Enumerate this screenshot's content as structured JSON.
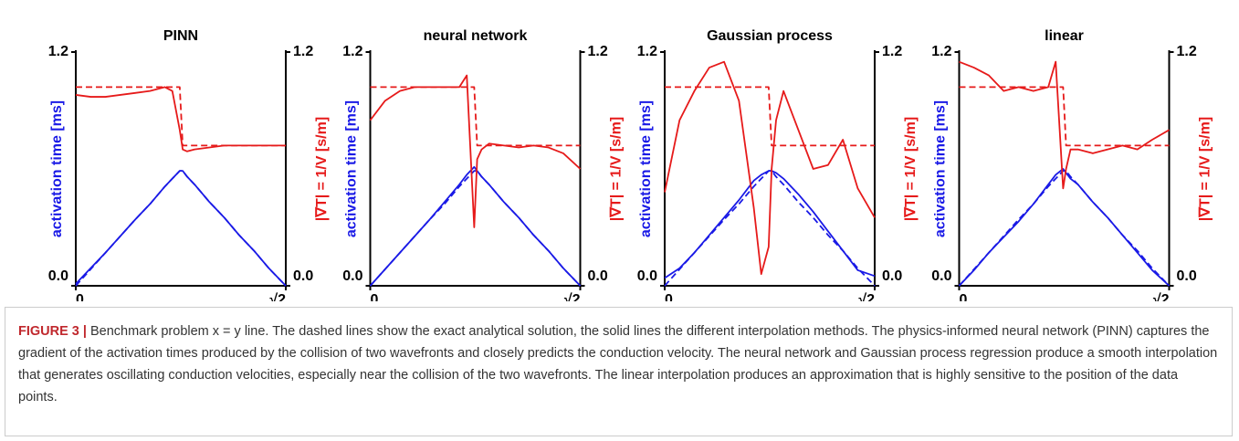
{
  "chart_data": [
    {
      "type": "line",
      "title": "PINN",
      "ylabel": "activation time [ms]",
      "y2label": "|∇T| = 1/V [s/m]",
      "x": [
        0,
        0.1,
        0.2,
        0.3,
        0.4,
        0.5,
        0.6,
        0.65,
        0.7,
        0.72,
        0.75,
        0.8,
        0.9,
        1.0,
        1.1,
        1.2,
        1.3,
        1.414
      ],
      "xlim": [
        0,
        1.414
      ],
      "xticks": [
        0,
        {
          "value": 1.414,
          "label": "√2"
        }
      ],
      "ylim": [
        0,
        1.2
      ],
      "yticks": [
        {
          "value": 0,
          "label": "0.0"
        },
        1.2
      ],
      "y2lim": [
        0,
        1.2
      ],
      "y2ticks": [
        {
          "value": 0,
          "label": "0.0"
        },
        1.2
      ],
      "series": [
        {
          "color": "#1a1ae6",
          "dash": true,
          "values": [
            0,
            0.085,
            0.17,
            0.255,
            0.34,
            0.42,
            0.51,
            0.55,
            0.59,
            0.59,
            0.56,
            0.52,
            0.43,
            0.35,
            0.26,
            0.18,
            0.09,
            0
          ]
        },
        {
          "color": "#1a1ae6",
          "dash": false,
          "values": [
            0.01,
            0.09,
            0.17,
            0.255,
            0.34,
            0.42,
            0.51,
            0.55,
            0.59,
            0.59,
            0.56,
            0.52,
            0.43,
            0.35,
            0.26,
            0.18,
            0.09,
            0
          ]
        },
        {
          "color": "#e61a1a",
          "dash": true,
          "axis": "y2",
          "values": [
            1.02,
            1.02,
            1.02,
            1.02,
            1.02,
            1.02,
            1.02,
            1.02,
            1.02,
            0.72,
            0.72,
            0.72,
            0.72,
            0.72,
            0.72,
            0.72,
            0.72,
            0.72
          ]
        },
        {
          "color": "#e61a1a",
          "dash": false,
          "axis": "y2",
          "values": [
            0.98,
            0.97,
            0.97,
            0.98,
            0.99,
            1.0,
            1.02,
            1.0,
            0.8,
            0.7,
            0.69,
            0.7,
            0.71,
            0.72,
            0.72,
            0.72,
            0.72,
            0.72
          ]
        }
      ]
    },
    {
      "type": "line",
      "title": "neural network",
      "ylabel": "activation time [ms]",
      "y2label": "|∇T| = 1/V [s/m]",
      "x": [
        0,
        0.1,
        0.2,
        0.3,
        0.4,
        0.5,
        0.6,
        0.65,
        0.7,
        0.72,
        0.75,
        0.8,
        0.9,
        1.0,
        1.1,
        1.2,
        1.3,
        1.414
      ],
      "xlim": [
        0,
        1.414
      ],
      "xticks": [
        0,
        {
          "value": 1.414,
          "label": "√2"
        }
      ],
      "ylim": [
        0,
        1.2
      ],
      "yticks": [
        {
          "value": 0,
          "label": "0.0"
        },
        1.2
      ],
      "y2lim": [
        0,
        1.2
      ],
      "y2ticks": [
        {
          "value": 0,
          "label": "0.0"
        },
        1.2
      ],
      "series": [
        {
          "color": "#1a1ae6",
          "dash": true,
          "values": [
            0,
            0.085,
            0.17,
            0.255,
            0.34,
            0.42,
            0.51,
            0.55,
            0.59,
            0.59,
            0.56,
            0.52,
            0.43,
            0.35,
            0.26,
            0.18,
            0.09,
            0
          ]
        },
        {
          "color": "#1a1ae6",
          "dash": false,
          "values": [
            0,
            0.085,
            0.17,
            0.255,
            0.34,
            0.43,
            0.52,
            0.57,
            0.61,
            0.59,
            0.56,
            0.52,
            0.43,
            0.35,
            0.26,
            0.18,
            0.09,
            0
          ]
        },
        {
          "color": "#e61a1a",
          "dash": true,
          "axis": "y2",
          "values": [
            1.02,
            1.02,
            1.02,
            1.02,
            1.02,
            1.02,
            1.02,
            1.02,
            1.02,
            0.72,
            0.72,
            0.72,
            0.72,
            0.72,
            0.72,
            0.72,
            0.72,
            0.72
          ]
        },
        {
          "color": "#e61a1a",
          "dash": false,
          "axis": "y2",
          "values": [
            0.85,
            0.95,
            1.0,
            1.02,
            1.02,
            1.02,
            1.02,
            1.08,
            0.3,
            0.65,
            0.7,
            0.73,
            0.72,
            0.71,
            0.72,
            0.71,
            0.68,
            0.6
          ]
        }
      ]
    },
    {
      "type": "line",
      "title": "Gaussian process",
      "ylabel": "activation time [ms]",
      "y2label": "|∇T| = 1/V [s/m]",
      "x": [
        0,
        0.1,
        0.2,
        0.3,
        0.4,
        0.5,
        0.6,
        0.65,
        0.7,
        0.72,
        0.75,
        0.8,
        0.9,
        1.0,
        1.1,
        1.2,
        1.3,
        1.414
      ],
      "xlim": [
        0,
        1.414
      ],
      "xticks": [
        0,
        {
          "value": 1.414,
          "label": "√2"
        }
      ],
      "ylim": [
        0,
        1.2
      ],
      "yticks": [
        {
          "value": 0,
          "label": "0.0"
        },
        1.2
      ],
      "y2lim": [
        0,
        1.2
      ],
      "y2ticks": [
        {
          "value": 0,
          "label": "0.0"
        },
        1.2
      ],
      "series": [
        {
          "color": "#1a1ae6",
          "dash": true,
          "values": [
            0,
            0.085,
            0.17,
            0.255,
            0.34,
            0.42,
            0.51,
            0.55,
            0.59,
            0.59,
            0.56,
            0.52,
            0.43,
            0.35,
            0.26,
            0.18,
            0.09,
            0
          ]
        },
        {
          "color": "#1a1ae6",
          "dash": false,
          "values": [
            0.04,
            0.09,
            0.17,
            0.26,
            0.35,
            0.44,
            0.54,
            0.57,
            0.59,
            0.59,
            0.58,
            0.55,
            0.47,
            0.38,
            0.28,
            0.18,
            0.08,
            0.05
          ]
        },
        {
          "color": "#e61a1a",
          "dash": true,
          "axis": "y2",
          "values": [
            1.02,
            1.02,
            1.02,
            1.02,
            1.02,
            1.02,
            1.02,
            1.02,
            1.02,
            0.72,
            0.72,
            0.72,
            0.72,
            0.72,
            0.72,
            0.72,
            0.72,
            0.72
          ]
        },
        {
          "color": "#e61a1a",
          "dash": false,
          "axis": "y2",
          "values": [
            0.48,
            0.85,
            1.0,
            1.12,
            1.15,
            0.95,
            0.4,
            0.06,
            0.2,
            0.6,
            0.85,
            1.0,
            0.8,
            0.6,
            0.62,
            0.75,
            0.5,
            0.35
          ]
        }
      ]
    },
    {
      "type": "line",
      "title": "linear",
      "ylabel": "activation time [ms]",
      "y2label": "|∇T| = 1/V [s/m]",
      "x": [
        0,
        0.1,
        0.2,
        0.3,
        0.4,
        0.5,
        0.6,
        0.65,
        0.7,
        0.72,
        0.75,
        0.8,
        0.9,
        1.0,
        1.1,
        1.2,
        1.3,
        1.414
      ],
      "xlim": [
        0,
        1.414
      ],
      "xticks": [
        0,
        {
          "value": 1.414,
          "label": "√2"
        }
      ],
      "ylim": [
        0,
        1.2
      ],
      "yticks": [
        {
          "value": 0,
          "label": "0.0"
        },
        1.2
      ],
      "y2lim": [
        0,
        1.2
      ],
      "y2ticks": [
        {
          "value": 0,
          "label": "0.0"
        },
        1.2
      ],
      "series": [
        {
          "color": "#1a1ae6",
          "dash": true,
          "values": [
            0,
            0.085,
            0.17,
            0.255,
            0.34,
            0.42,
            0.51,
            0.55,
            0.59,
            0.59,
            0.56,
            0.52,
            0.43,
            0.35,
            0.26,
            0.18,
            0.09,
            0
          ]
        },
        {
          "color": "#1a1ae6",
          "dash": false,
          "values": [
            0,
            0.08,
            0.17,
            0.25,
            0.33,
            0.42,
            0.52,
            0.57,
            0.6,
            0.58,
            0.55,
            0.52,
            0.43,
            0.35,
            0.26,
            0.17,
            0.08,
            0
          ]
        },
        {
          "color": "#e61a1a",
          "dash": true,
          "axis": "y2",
          "values": [
            1.02,
            1.02,
            1.02,
            1.02,
            1.02,
            1.02,
            1.02,
            1.02,
            1.02,
            0.72,
            0.72,
            0.72,
            0.72,
            0.72,
            0.72,
            0.72,
            0.72,
            0.72
          ]
        },
        {
          "color": "#e61a1a",
          "dash": false,
          "axis": "y2",
          "values": [
            1.15,
            1.12,
            1.08,
            1.0,
            1.02,
            1.0,
            1.02,
            1.15,
            0.5,
            0.6,
            0.7,
            0.7,
            0.68,
            0.7,
            0.72,
            0.7,
            0.75,
            0.8
          ]
        }
      ]
    }
  ],
  "caption": {
    "label": "FIGURE 3 |",
    "text": "Benchmark problem x = y line. The dashed lines show the exact analytical solution, the solid lines the different interpolation methods. The physics-informed neural network (PINN) captures the gradient of the activation times produced by the collision of two wavefronts and closely predicts the conduction velocity. The neural network and Gaussian process regression produce a smooth interpolation that generates oscillating conduction velocities, especially near the collision of the two wavefronts. The linear interpolation produces an approximation that is highly sensitive to the position of the data points."
  }
}
